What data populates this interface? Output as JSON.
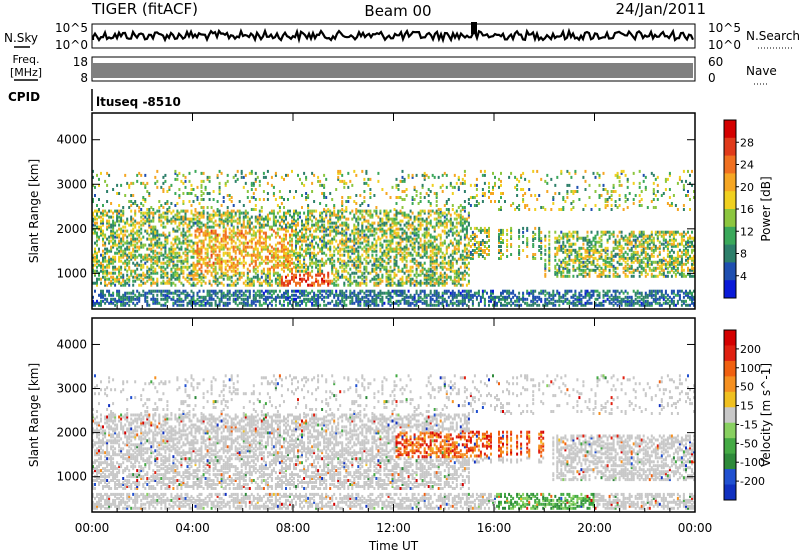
{
  "header": {
    "title": "TIGER (fitACF)",
    "beam": "Beam 00",
    "date": "24/Jan/2011"
  },
  "top_panels": {
    "nsky_label": "N.Sky",
    "nsearch_label": "N.Search",
    "noise_tick_high": "10^5",
    "noise_tick_low": "10^0",
    "freq_label_1": "Freq.",
    "freq_label_2": "[MHz]",
    "freq_tick_high": "18",
    "freq_tick_low": "8",
    "nave_label": "Nave",
    "nave_tick_high": "60",
    "nave_tick_low": "0",
    "cpid_label": "CPID",
    "cpid_value": "ltuseq -8510"
  },
  "chart_data": [
    {
      "type": "heatmap",
      "panel": "power",
      "ylabel": "Slant Range [km]",
      "xlabel": "",
      "x_ticks": [
        "00:00",
        "04:00",
        "08:00",
        "12:00",
        "16:00",
        "20:00",
        "00:00"
      ],
      "y_ticks": [
        1000,
        2000,
        3000,
        4000
      ],
      "ylim": [
        200,
        4600
      ],
      "xlim_hours": [
        0,
        24
      ],
      "colorbar_label": "Power [dB]",
      "colorbar_ticks": [
        "4",
        "8",
        "12",
        "16",
        "20",
        "24",
        "28"
      ],
      "colorbar_colors": [
        "#0a1ad8",
        "#1f4fb0",
        "#2d7f6a",
        "#3aa85a",
        "#8cc63f",
        "#f0d020",
        "#f5a623",
        "#f07020",
        "#e03a1a",
        "#d40000"
      ],
      "colorbar_range": [
        0,
        32
      ]
    },
    {
      "type": "heatmap",
      "panel": "velocity",
      "ylabel": "Slant Range [km]",
      "xlabel": "Time UT",
      "x_ticks": [
        "00:00",
        "04:00",
        "08:00",
        "12:00",
        "16:00",
        "20:00",
        "00:00"
      ],
      "y_ticks": [
        1000,
        2000,
        3000,
        4000
      ],
      "ylim": [
        200,
        4600
      ],
      "xlim_hours": [
        0,
        24
      ],
      "colorbar_label": "Velocity [m s^-1]",
      "colorbar_ticks": [
        "200",
        "100",
        "50",
        "15",
        "-15",
        "-50",
        "-100",
        "-200"
      ],
      "colorbar_colors": [
        "#1030c0",
        "#2050d0",
        "#2e8a3a",
        "#44aa44",
        "#88d060",
        "#c8c8c8",
        "#f0c020",
        "#f59020",
        "#f06010",
        "#e02010",
        "#d40000"
      ],
      "colorbar_range": [
        -250,
        250
      ]
    }
  ]
}
